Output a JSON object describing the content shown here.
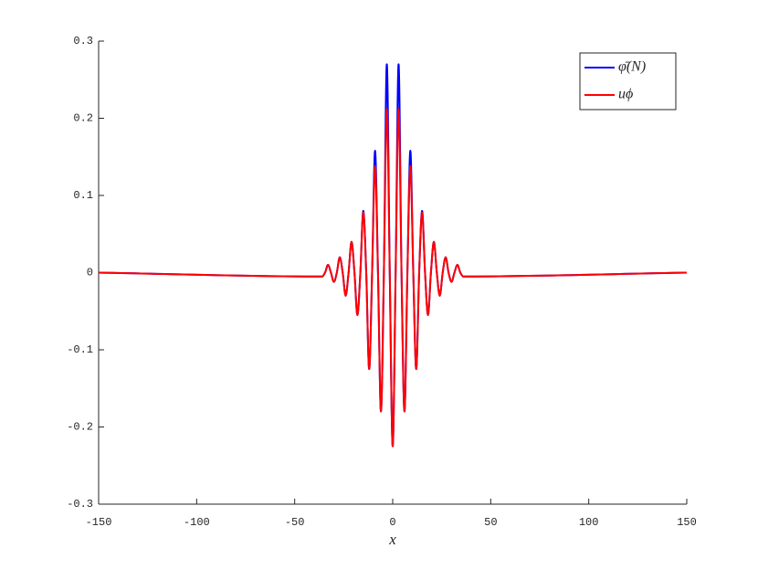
{
  "chart_data": {
    "type": "line",
    "xlabel": "x",
    "xlim": [
      -150,
      150
    ],
    "xticks": [
      -150,
      -100,
      -50,
      0,
      50,
      100,
      150
    ],
    "ylim": [
      -0.3,
      0.3
    ],
    "yticks": [
      -0.3,
      -0.2,
      -0.1,
      0,
      0.1,
      0.2,
      0.3
    ],
    "legend": "upper right",
    "x": [
      -150,
      -36,
      -34.5,
      -33,
      -31.5,
      -30,
      -28.5,
      -27,
      -25.5,
      -24,
      -22.5,
      -21,
      -19.5,
      -18,
      -16.5,
      -15,
      -13.5,
      -12,
      -10.5,
      -9,
      -7.5,
      -6,
      -4.5,
      -3,
      -1.5,
      0,
      1.5,
      3,
      4.5,
      6,
      7.5,
      9,
      10.5,
      12,
      13.5,
      15,
      16.5,
      18,
      19.5,
      21,
      22.5,
      24,
      25.5,
      27,
      28.5,
      30,
      31.5,
      33,
      34.5,
      36,
      150
    ],
    "series": [
      {
        "name": "φ̄(N)",
        "color": "#0000ff",
        "values": [
          0,
          -0.005,
          0,
          0.01,
          0,
          -0.012,
          0,
          0.02,
          0,
          -0.03,
          0,
          0.04,
          0,
          -0.055,
          0,
          0.08,
          0,
          -0.125,
          0,
          0.158,
          0,
          -0.18,
          0,
          0.27,
          0,
          -0.225,
          0,
          0.27,
          0,
          -0.18,
          0,
          0.158,
          0,
          -0.125,
          0,
          0.08,
          0,
          -0.055,
          0,
          0.04,
          0,
          -0.03,
          0,
          0.02,
          0,
          -0.012,
          0,
          0.01,
          0,
          -0.005,
          0
        ]
      },
      {
        "name": "uϕ",
        "color": "#ff0000",
        "values": [
          0,
          -0.005,
          0,
          0.01,
          0,
          -0.012,
          0,
          0.02,
          0,
          -0.03,
          0,
          0.04,
          0,
          -0.055,
          0,
          0.078,
          0,
          -0.125,
          0,
          0.138,
          0,
          -0.18,
          0,
          0.212,
          0,
          -0.225,
          0,
          0.212,
          0,
          -0.18,
          0,
          0.138,
          0,
          -0.125,
          0,
          0.078,
          0,
          -0.055,
          0,
          0.04,
          0,
          -0.03,
          0,
          0.02,
          0,
          -0.012,
          0,
          0.01,
          0,
          -0.005,
          0
        ]
      }
    ]
  }
}
